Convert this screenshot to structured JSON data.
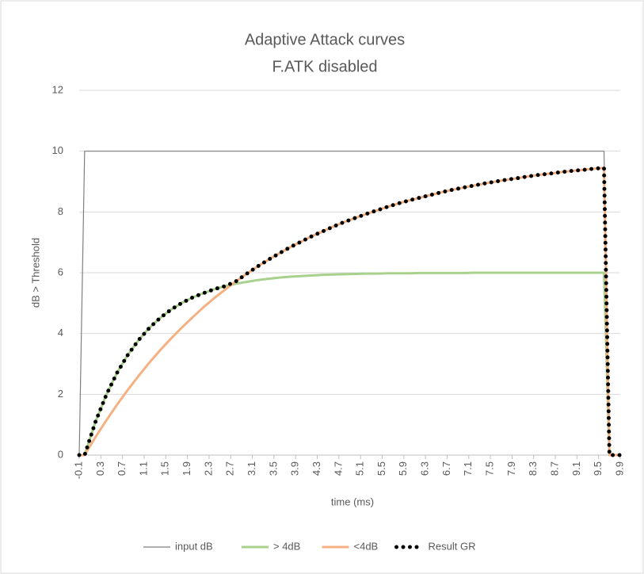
{
  "chart_data": {
    "type": "line",
    "title": "Adaptive Attack curves",
    "subtitle": "F.ATK disabled",
    "x_label": "time (ms)",
    "y_label": "dB > Threshold",
    "x": [
      -0.1,
      0,
      0.2,
      0.4,
      0.6,
      0.8,
      1.0,
      1.2,
      1.4,
      1.6,
      1.8,
      2.0,
      2.2,
      2.4,
      2.6,
      2.8,
      3.0,
      3.2,
      3.4,
      3.6,
      3.8,
      4.0,
      4.2,
      4.4,
      4.6,
      4.8,
      5.0,
      5.2,
      5.4,
      5.6,
      5.8,
      6.0,
      6.2,
      6.4,
      6.6,
      6.8,
      7.0,
      7.2,
      7.4,
      7.6,
      7.8,
      8.0,
      8.2,
      8.4,
      8.6,
      8.8,
      9.0,
      9.2,
      9.4,
      9.6,
      9.7,
      9.8,
      9.9
    ],
    "series": [
      {
        "name": "input dB",
        "color": "#7f7f7f",
        "width": 1.2,
        "line_style": "solid",
        "values": [
          0,
          10,
          10,
          10,
          10,
          10,
          10,
          10,
          10,
          10,
          10,
          10,
          10,
          10,
          10,
          10,
          10,
          10,
          10,
          10,
          10,
          10,
          10,
          10,
          10,
          10,
          10,
          10,
          10,
          10,
          10,
          10,
          10,
          10,
          10,
          10,
          10,
          10,
          10,
          10,
          10,
          10,
          10,
          10,
          10,
          10,
          10,
          10,
          10,
          10,
          0,
          0,
          0
        ]
      },
      {
        "name": "> 4dB",
        "color": "#a9d18e",
        "width": 3,
        "line_style": "solid",
        "values": [
          0,
          0,
          1.09,
          1.98,
          2.71,
          3.3,
          3.79,
          4.19,
          4.52,
          4.79,
          5.01,
          5.19,
          5.33,
          5.46,
          5.56,
          5.64,
          5.7,
          5.76,
          5.8,
          5.84,
          5.87,
          5.89,
          5.91,
          5.93,
          5.94,
          5.95,
          5.96,
          5.97,
          5.97,
          5.98,
          5.98,
          5.98,
          5.99,
          5.99,
          5.99,
          5.99,
          5.99,
          6,
          6,
          6,
          6,
          6,
          6,
          6,
          6,
          6,
          6,
          6,
          6,
          6,
          0,
          0,
          0
        ]
      },
      {
        "name": "<4dB",
        "color": "#f4b183",
        "width": 3,
        "line_style": "solid",
        "values": [
          0,
          0,
          0.59,
          1.14,
          1.66,
          2.15,
          2.61,
          3.05,
          3.46,
          3.84,
          4.2,
          4.54,
          4.87,
          5.17,
          5.45,
          5.72,
          5.97,
          6.21,
          6.43,
          6.64,
          6.84,
          7.02,
          7.2,
          7.36,
          7.52,
          7.67,
          7.8,
          7.93,
          8.05,
          8.17,
          8.28,
          8.38,
          8.47,
          8.56,
          8.65,
          8.73,
          8.8,
          8.87,
          8.94,
          9.0,
          9.06,
          9.11,
          9.17,
          9.22,
          9.26,
          9.31,
          9.35,
          9.38,
          9.42,
          9.45,
          0,
          0,
          0
        ]
      },
      {
        "name": "Result GR",
        "color": "#000000",
        "width": 5,
        "line_style": "dotted",
        "values": [
          0,
          0,
          1.09,
          1.98,
          2.71,
          3.3,
          3.79,
          4.19,
          4.52,
          4.79,
          5.01,
          5.19,
          5.33,
          5.46,
          5.56,
          5.72,
          5.97,
          6.21,
          6.43,
          6.64,
          6.84,
          7.02,
          7.2,
          7.36,
          7.52,
          7.67,
          7.8,
          7.93,
          8.05,
          8.17,
          8.28,
          8.38,
          8.47,
          8.56,
          8.65,
          8.73,
          8.8,
          8.87,
          8.94,
          9.0,
          9.06,
          9.11,
          9.17,
          9.22,
          9.26,
          9.31,
          9.35,
          9.38,
          9.42,
          9.45,
          0,
          0,
          0
        ]
      }
    ],
    "xlim": [
      -0.1,
      9.9
    ],
    "xticks": [
      -0.1,
      0.3,
      0.7,
      1.1,
      1.5,
      1.9,
      2.3,
      2.7,
      3.1,
      3.5,
      3.9,
      4.3,
      4.7,
      5.1,
      5.5,
      5.9,
      6.3,
      6.7,
      7.1,
      7.5,
      7.9,
      8.3,
      8.7,
      9.1,
      9.5,
      9.9
    ],
    "ylim": [
      0,
      12
    ],
    "yticks": [
      0,
      2,
      4,
      6,
      8,
      10,
      12
    ],
    "grid": true,
    "legend": "bottom"
  }
}
